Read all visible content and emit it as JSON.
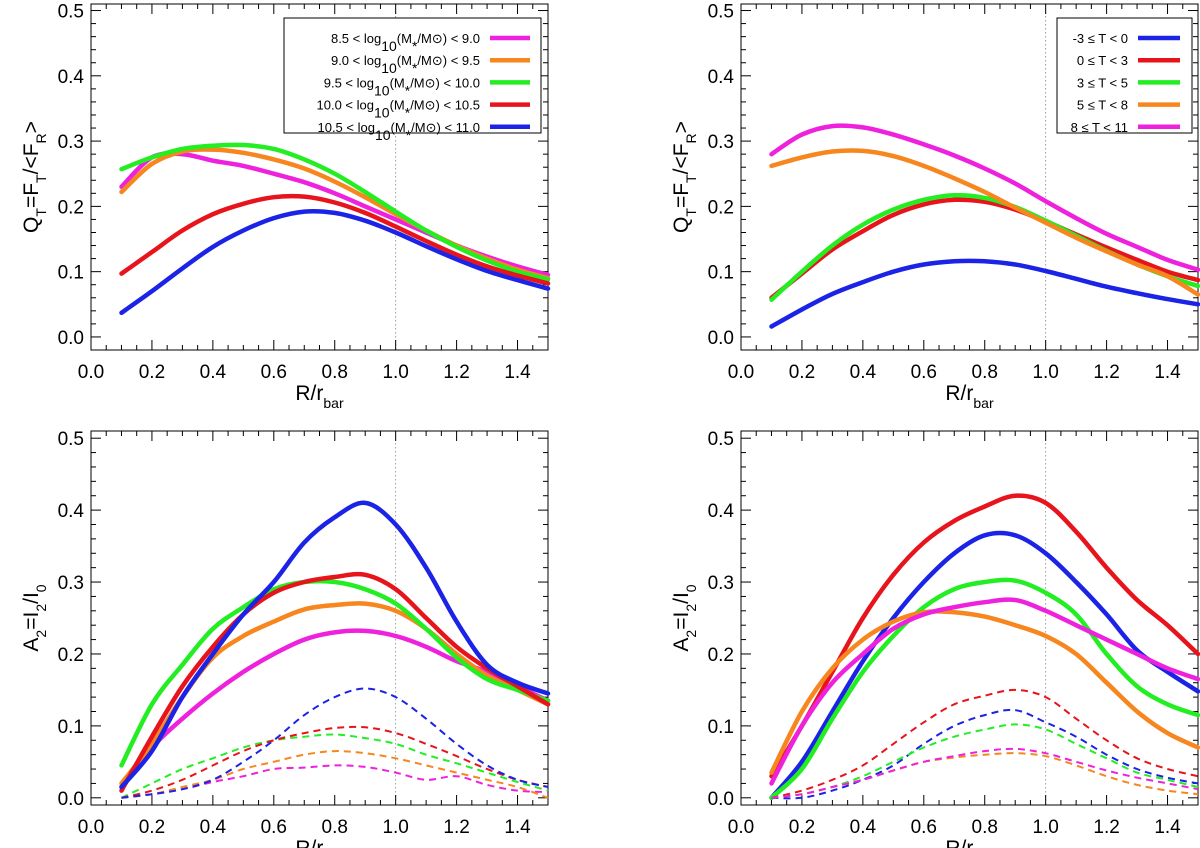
{
  "figure": {
    "x_axis_label": "R/r",
    "x_axis_label_sub": "bar",
    "q_axis_label_parts": [
      "Q",
      "T",
      "=F",
      "T",
      "/<F",
      "R",
      ">"
    ],
    "a_axis_label_parts": [
      "A",
      "2",
      "=I",
      "2",
      "/I",
      "0"
    ],
    "x_ticks": [
      "0.0",
      "0.2",
      "0.4",
      "0.6",
      "0.8",
      "1.0",
      "1.2",
      "1.4"
    ],
    "y_ticks": [
      "0.0",
      "0.1",
      "0.2",
      "0.3",
      "0.4",
      "0.5"
    ]
  },
  "legend_mass": {
    "entries": [
      {
        "parts": [
          "8.5 < log",
          "10",
          "(M",
          "*",
          "/M",
          "⊙",
          ") < 9.0"
        ],
        "color": "#ee22dd"
      },
      {
        "parts": [
          "9.0 < log",
          "10",
          "(M",
          "*",
          "/M",
          "⊙",
          ") < 9.5"
        ],
        "color": "#f7861e"
      },
      {
        "parts": [
          "9.5 < log",
          "10",
          "(M",
          "*",
          "/M",
          "⊙",
          ") < 10.0"
        ],
        "color": "#22ee22"
      },
      {
        "parts": [
          "10.0 < log",
          "10",
          "(M",
          "*",
          "/M",
          "⊙",
          ") < 10.5"
        ],
        "color": "#e8141c"
      },
      {
        "parts": [
          "10.5 < log",
          "10",
          "(M",
          "*",
          "/M",
          "⊙",
          ") < 11.0"
        ],
        "color": "#1a23e6"
      }
    ]
  },
  "legend_type": {
    "entries": [
      {
        "text": "-3 ≤ T < 0",
        "color": "#1a23e6"
      },
      {
        "text": "0 ≤ T < 3",
        "color": "#e8141c"
      },
      {
        "text": "3 ≤ T < 5",
        "color": "#22ee22"
      },
      {
        "text": "5 ≤ T < 8",
        "color": "#f7861e"
      },
      {
        "text": "8 ≤ T < 11",
        "color": "#ee22dd"
      }
    ]
  },
  "chart_data": [
    {
      "id": "top-left",
      "type": "line",
      "title": "",
      "xlabel": "R/r_bar",
      "ylabel": "Q_T=F_T/<F_R>",
      "xlim": [
        0.0,
        1.5
      ],
      "ylim": [
        -0.02,
        0.51
      ],
      "ref_x": 1.0,
      "x": [
        0.1,
        0.2,
        0.3,
        0.4,
        0.5,
        0.6,
        0.7,
        0.8,
        0.9,
        1.0,
        1.1,
        1.2,
        1.3,
        1.4,
        1.5
      ],
      "series": [
        {
          "name": "8.5 < log10(M*/M⊙) < 9.0",
          "color": "#ee22dd",
          "style": "solid",
          "values": [
            0.23,
            0.275,
            0.28,
            0.27,
            0.262,
            0.25,
            0.237,
            0.22,
            0.2,
            0.18,
            0.16,
            0.14,
            0.123,
            0.108,
            0.095
          ]
        },
        {
          "name": "9.0 < log10(M*/M⊙) < 9.5",
          "color": "#f7861e",
          "style": "solid",
          "values": [
            0.222,
            0.265,
            0.284,
            0.287,
            0.282,
            0.272,
            0.258,
            0.238,
            0.214,
            0.188,
            0.163,
            0.14,
            0.12,
            0.103,
            0.09
          ]
        },
        {
          "name": "9.5 < log10(M*/M⊙) < 10.0",
          "color": "#22ee22",
          "style": "solid",
          "values": [
            0.257,
            0.275,
            0.288,
            0.293,
            0.294,
            0.288,
            0.272,
            0.25,
            0.222,
            0.192,
            0.163,
            0.138,
            0.117,
            0.1,
            0.088
          ]
        },
        {
          "name": "10.0 < log10(M*/M⊙) < 10.5",
          "color": "#e8141c",
          "style": "solid",
          "values": [
            0.097,
            0.13,
            0.163,
            0.188,
            0.204,
            0.214,
            0.215,
            0.206,
            0.19,
            0.169,
            0.147,
            0.126,
            0.108,
            0.094,
            0.082
          ]
        },
        {
          "name": "10.5 < log10(M*/M⊙) < 11.0",
          "color": "#1a23e6",
          "style": "solid",
          "values": [
            0.037,
            0.07,
            0.105,
            0.138,
            0.163,
            0.182,
            0.192,
            0.19,
            0.178,
            0.16,
            0.139,
            0.119,
            0.101,
            0.087,
            0.074
          ]
        }
      ]
    },
    {
      "id": "top-right",
      "type": "line",
      "title": "",
      "xlabel": "R/r_bar",
      "ylabel": "Q_T=F_T/<F_R>",
      "xlim": [
        0.0,
        1.5
      ],
      "ylim": [
        -0.02,
        0.51
      ],
      "ref_x": 1.0,
      "x": [
        0.1,
        0.2,
        0.3,
        0.4,
        0.5,
        0.6,
        0.7,
        0.8,
        0.9,
        1.0,
        1.1,
        1.2,
        1.3,
        1.4,
        1.5
      ],
      "series": [
        {
          "name": "-3 ≤ T < 0",
          "color": "#1a23e6",
          "style": "solid",
          "values": [
            0.016,
            0.042,
            0.066,
            0.084,
            0.1,
            0.111,
            0.116,
            0.116,
            0.111,
            0.101,
            0.089,
            0.077,
            0.067,
            0.058,
            0.05
          ]
        },
        {
          "name": "0 ≤ T < 3",
          "color": "#e8141c",
          "style": "solid",
          "values": [
            0.06,
            0.097,
            0.134,
            0.162,
            0.187,
            0.203,
            0.21,
            0.207,
            0.195,
            0.177,
            0.157,
            0.137,
            0.118,
            0.1,
            0.087
          ]
        },
        {
          "name": "3 ≤ T < 5",
          "color": "#22ee22",
          "style": "solid",
          "values": [
            0.057,
            0.1,
            0.14,
            0.172,
            0.195,
            0.21,
            0.217,
            0.213,
            0.199,
            0.178,
            0.155,
            0.132,
            0.111,
            0.093,
            0.078
          ]
        },
        {
          "name": "5 ≤ T < 8",
          "color": "#f7861e",
          "style": "solid",
          "values": [
            0.262,
            0.275,
            0.284,
            0.285,
            0.277,
            0.262,
            0.243,
            0.222,
            0.198,
            0.175,
            0.152,
            0.131,
            0.111,
            0.093,
            0.065
          ]
        },
        {
          "name": "8 ≤ T < 11",
          "color": "#ee22dd",
          "style": "solid",
          "values": [
            0.28,
            0.31,
            0.323,
            0.321,
            0.31,
            0.295,
            0.278,
            0.258,
            0.235,
            0.208,
            0.182,
            0.158,
            0.138,
            0.118,
            0.103
          ]
        }
      ]
    },
    {
      "id": "bottom-left",
      "type": "line",
      "title": "",
      "xlabel": "R/r_bar",
      "ylabel": "A_2=I_2/I_0",
      "xlim": [
        0.0,
        1.5
      ],
      "ylim": [
        -0.01,
        0.51
      ],
      "ref_x": 1.0,
      "x": [
        0.1,
        0.2,
        0.3,
        0.4,
        0.5,
        0.6,
        0.7,
        0.8,
        0.9,
        1.0,
        1.1,
        1.2,
        1.3,
        1.4,
        1.5
      ],
      "series": [
        {
          "name": "8.5 < log10(M*/M⊙) < 9.0",
          "color": "#ee22dd",
          "style": "solid",
          "values": [
            0.015,
            0.07,
            0.11,
            0.145,
            0.175,
            0.2,
            0.22,
            0.23,
            0.232,
            0.225,
            0.21,
            0.19,
            0.175,
            0.155,
            0.135
          ]
        },
        {
          "name": "9.0 < log10(M*/M⊙) < 9.5",
          "color": "#f7861e",
          "style": "solid",
          "values": [
            0.02,
            0.075,
            0.14,
            0.195,
            0.225,
            0.245,
            0.262,
            0.268,
            0.27,
            0.26,
            0.235,
            0.2,
            0.17,
            0.15,
            0.13
          ]
        },
        {
          "name": "9.5 < log10(M*/M⊙) < 10.0",
          "color": "#22ee22",
          "style": "solid",
          "values": [
            0.045,
            0.13,
            0.185,
            0.235,
            0.265,
            0.29,
            0.3,
            0.3,
            0.29,
            0.27,
            0.235,
            0.195,
            0.165,
            0.15,
            0.135
          ]
        },
        {
          "name": "10.0 < log10(M*/M⊙) < 10.5",
          "color": "#e8141c",
          "style": "solid",
          "values": [
            0.01,
            0.085,
            0.155,
            0.21,
            0.255,
            0.285,
            0.3,
            0.307,
            0.31,
            0.29,
            0.25,
            0.21,
            0.18,
            0.155,
            0.13
          ]
        },
        {
          "name": "10.5 < log10(M*/M⊙) < 11.0",
          "color": "#1a23e6",
          "style": "solid",
          "values": [
            0.015,
            0.065,
            0.14,
            0.2,
            0.255,
            0.3,
            0.355,
            0.39,
            0.41,
            0.38,
            0.32,
            0.245,
            0.185,
            0.16,
            0.145
          ]
        },
        {
          "name": "8.5 < log10(M*/M⊙) < 9.0 (dashed)",
          "color": "#ee22dd",
          "style": "dashed",
          "values": [
            0.0,
            0.005,
            0.012,
            0.022,
            0.03,
            0.04,
            0.042,
            0.045,
            0.043,
            0.035,
            0.025,
            0.03,
            0.018,
            0.01,
            0.008
          ]
        },
        {
          "name": "9.0 < log10(M*/M⊙) < 9.5 (dashed)",
          "color": "#f7861e",
          "style": "dashed",
          "values": [
            0.0,
            0.005,
            0.015,
            0.025,
            0.04,
            0.05,
            0.06,
            0.065,
            0.062,
            0.055,
            0.045,
            0.035,
            0.025,
            0.015,
            0.0
          ]
        },
        {
          "name": "9.5 < log10(M*/M⊙) < 10.0 (dashed)",
          "color": "#22ee22",
          "style": "dashed",
          "values": [
            0.0,
            0.02,
            0.04,
            0.055,
            0.07,
            0.08,
            0.085,
            0.088,
            0.083,
            0.075,
            0.06,
            0.048,
            0.035,
            0.022,
            0.01
          ]
        },
        {
          "name": "10.0 < log10(M*/M⊙) < 10.5 (dashed)",
          "color": "#e8141c",
          "style": "dashed",
          "values": [
            0.0,
            0.01,
            0.025,
            0.045,
            0.065,
            0.08,
            0.09,
            0.097,
            0.098,
            0.09,
            0.075,
            0.058,
            0.04,
            0.025,
            0.015
          ]
        },
        {
          "name": "10.5 < log10(M*/M⊙) < 11.0 (dashed)",
          "color": "#1a23e6",
          "style": "dashed",
          "values": [
            0.0,
            0.005,
            0.012,
            0.025,
            0.05,
            0.08,
            0.115,
            0.14,
            0.152,
            0.14,
            0.11,
            0.075,
            0.045,
            0.025,
            0.015
          ]
        }
      ]
    },
    {
      "id": "bottom-right",
      "type": "line",
      "title": "",
      "xlabel": "R/r_bar",
      "ylabel": "A_2=I_2/I_0",
      "xlim": [
        0.0,
        1.5
      ],
      "ylim": [
        -0.01,
        0.51
      ],
      "ref_x": 1.0,
      "x": [
        0.1,
        0.2,
        0.3,
        0.4,
        0.5,
        0.6,
        0.7,
        0.8,
        0.9,
        1.0,
        1.1,
        1.2,
        1.3,
        1.4,
        1.5
      ],
      "series": [
        {
          "name": "-3 ≤ T < 0",
          "color": "#1a23e6",
          "style": "solid",
          "values": [
            0.0,
            0.05,
            0.12,
            0.19,
            0.25,
            0.3,
            0.34,
            0.365,
            0.365,
            0.34,
            0.3,
            0.255,
            0.205,
            0.175,
            0.148
          ]
        },
        {
          "name": "0 ≤ T < 3",
          "color": "#e8141c",
          "style": "solid",
          "values": [
            0.03,
            0.1,
            0.175,
            0.25,
            0.31,
            0.355,
            0.385,
            0.405,
            0.42,
            0.41,
            0.37,
            0.32,
            0.275,
            0.24,
            0.2
          ]
        },
        {
          "name": "3 ≤ T < 5",
          "color": "#22ee22",
          "style": "solid",
          "values": [
            0.0,
            0.04,
            0.11,
            0.175,
            0.225,
            0.265,
            0.29,
            0.3,
            0.302,
            0.285,
            0.255,
            0.2,
            0.155,
            0.13,
            0.115
          ]
        },
        {
          "name": "5 ≤ T < 8",
          "color": "#f7861e",
          "style": "solid",
          "values": [
            0.035,
            0.12,
            0.18,
            0.22,
            0.245,
            0.258,
            0.258,
            0.252,
            0.24,
            0.225,
            0.2,
            0.16,
            0.12,
            0.09,
            0.07
          ]
        },
        {
          "name": "8 ≤ T < 11",
          "color": "#ee22dd",
          "style": "solid",
          "values": [
            0.02,
            0.1,
            0.16,
            0.2,
            0.235,
            0.255,
            0.265,
            0.272,
            0.275,
            0.26,
            0.24,
            0.22,
            0.2,
            0.18,
            0.165
          ]
        },
        {
          "name": "-3 ≤ T < 0 (dashed)",
          "color": "#1a23e6",
          "style": "dashed",
          "values": [
            0.0,
            0.0,
            0.01,
            0.025,
            0.045,
            0.075,
            0.1,
            0.115,
            0.122,
            0.105,
            0.085,
            0.06,
            0.04,
            0.028,
            0.02
          ]
        },
        {
          "name": "0 ≤ T < 3 (dashed)",
          "color": "#e8141c",
          "style": "dashed",
          "values": [
            0.0,
            0.01,
            0.025,
            0.045,
            0.075,
            0.105,
            0.13,
            0.142,
            0.15,
            0.14,
            0.11,
            0.08,
            0.055,
            0.04,
            0.03
          ]
        },
        {
          "name": "3 ≤ T < 5 (dashed)",
          "color": "#22ee22",
          "style": "dashed",
          "values": [
            0.0,
            0.005,
            0.015,
            0.03,
            0.05,
            0.07,
            0.085,
            0.095,
            0.102,
            0.095,
            0.075,
            0.055,
            0.035,
            0.025,
            0.015
          ]
        },
        {
          "name": "5 ≤ T < 8 (dashed)",
          "color": "#f7861e",
          "style": "dashed",
          "values": [
            0.0,
            0.005,
            0.015,
            0.025,
            0.038,
            0.05,
            0.056,
            0.06,
            0.062,
            0.058,
            0.045,
            0.03,
            0.018,
            0.01,
            0.005
          ]
        },
        {
          "name": "8 ≤ T < 11 (dashed)",
          "color": "#ee22dd",
          "style": "dashed",
          "values": [
            0.0,
            0.005,
            0.015,
            0.025,
            0.038,
            0.05,
            0.058,
            0.065,
            0.068,
            0.062,
            0.05,
            0.038,
            0.028,
            0.02,
            0.012
          ]
        }
      ]
    }
  ]
}
